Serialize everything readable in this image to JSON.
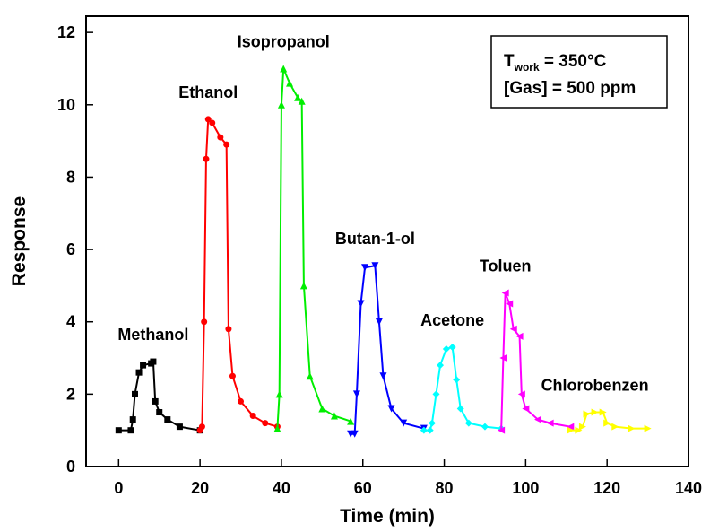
{
  "chart_data": {
    "type": "line",
    "xlabel": "Time (min)",
    "ylabel": "Response",
    "xlim": [
      -8,
      140
    ],
    "ylim": [
      0,
      12.45
    ],
    "xticks": [
      0,
      20,
      40,
      60,
      80,
      100,
      120,
      140
    ],
    "yticks": [
      0,
      2,
      4,
      6,
      8,
      10,
      12
    ],
    "annotation": {
      "t": "T",
      "subscript": "work",
      "condition": " = 350°C",
      "gas": "[Gas] = 500 ppm"
    },
    "series": [
      {
        "name": "Methanol",
        "color": "#000000",
        "marker": "square",
        "x": [
          0,
          3,
          3.5,
          4,
          5,
          6,
          8,
          8.5,
          9,
          10,
          12,
          15,
          20
        ],
        "values": [
          1.0,
          1.0,
          1.3,
          2.0,
          2.6,
          2.8,
          2.85,
          2.9,
          1.8,
          1.5,
          1.3,
          1.1,
          1.0
        ]
      },
      {
        "name": "Ethanol",
        "color": "#ff0000",
        "marker": "circle",
        "x": [
          20,
          20.5,
          21,
          21.5,
          22,
          23,
          25,
          26.5,
          27,
          28,
          30,
          33,
          36,
          39
        ],
        "values": [
          1.0,
          1.1,
          4.0,
          8.5,
          9.6,
          9.5,
          9.1,
          8.9,
          3.8,
          2.5,
          1.8,
          1.4,
          1.2,
          1.1
        ]
      },
      {
        "name": "Isopropanol",
        "color": "#00ee00",
        "marker": "triangle-up",
        "x": [
          39,
          39.5,
          40,
          40.5,
          42,
          44,
          45,
          45.5,
          47,
          50,
          53,
          57
        ],
        "values": [
          1.05,
          2.0,
          10.0,
          11.0,
          10.6,
          10.2,
          10.1,
          5.0,
          2.5,
          1.6,
          1.4,
          1.25
        ]
      },
      {
        "name": "Butan-1-ol",
        "color": "#0000ff",
        "marker": "triangle-down",
        "x": [
          57,
          58,
          58.5,
          59.5,
          60.5,
          63,
          64,
          65,
          67,
          70,
          75
        ],
        "values": [
          0.9,
          0.9,
          2.0,
          4.5,
          5.5,
          5.55,
          4.0,
          2.5,
          1.6,
          1.2,
          1.05
        ]
      },
      {
        "name": "Acetone",
        "color": "#00ffff",
        "marker": "diamond",
        "x": [
          75,
          76.5,
          77,
          78,
          79,
          80.5,
          82,
          83,
          84,
          86,
          90,
          94
        ],
        "values": [
          1.0,
          1.0,
          1.2,
          2.0,
          2.8,
          3.25,
          3.3,
          2.4,
          1.6,
          1.2,
          1.1,
          1.05
        ]
      },
      {
        "name": "Toluen",
        "color": "#ff00ff",
        "marker": "triangle-left",
        "x": [
          94,
          94.5,
          95,
          96,
          97,
          98.5,
          99,
          100,
          103,
          106,
          111
        ],
        "values": [
          1.0,
          3.0,
          4.8,
          4.5,
          3.8,
          3.6,
          2.0,
          1.6,
          1.3,
          1.2,
          1.1
        ]
      },
      {
        "name": "Chlorobenzen",
        "color": "#ffff00",
        "marker": "triangle-right",
        "x": [
          111,
          113,
          114,
          115,
          117,
          119,
          120,
          122,
          126,
          130
        ],
        "values": [
          1.0,
          1.0,
          1.1,
          1.45,
          1.5,
          1.5,
          1.2,
          1.1,
          1.05,
          1.05
        ]
      }
    ]
  }
}
